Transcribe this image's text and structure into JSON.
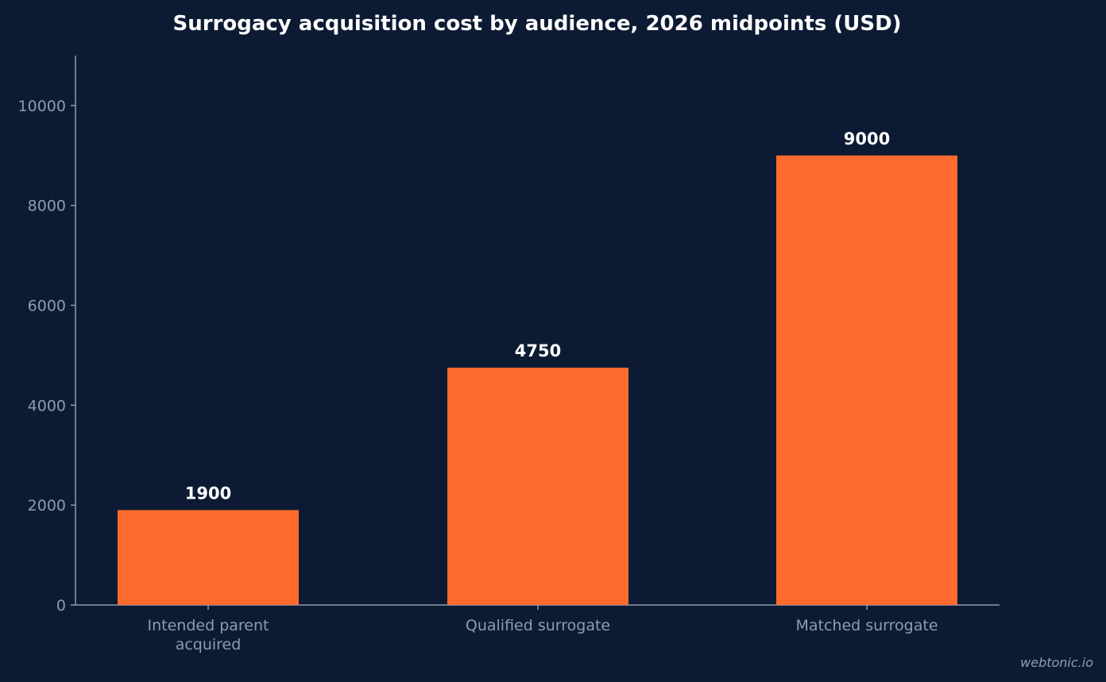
{
  "chart_data": {
    "type": "bar",
    "title": "Surrogacy acquisition cost by audience, 2026 midpoints (USD)",
    "categories": [
      [
        "Intended parent",
        "acquired"
      ],
      [
        "Qualified surrogate"
      ],
      [
        "Matched surrogate"
      ]
    ],
    "values": [
      1900,
      4750,
      9000
    ],
    "data_labels": [
      "1900",
      "4750",
      "9000"
    ],
    "xlabel": "",
    "ylabel": "",
    "ylim": [
      0,
      11000
    ],
    "yticks": [
      0,
      2000,
      4000,
      6000,
      8000,
      10000
    ],
    "grid": false,
    "bar_color": "#ff6b2f",
    "background_color": "#0c1b33",
    "axis_color": "#8e9bb2"
  },
  "watermark": "webtonic.io"
}
